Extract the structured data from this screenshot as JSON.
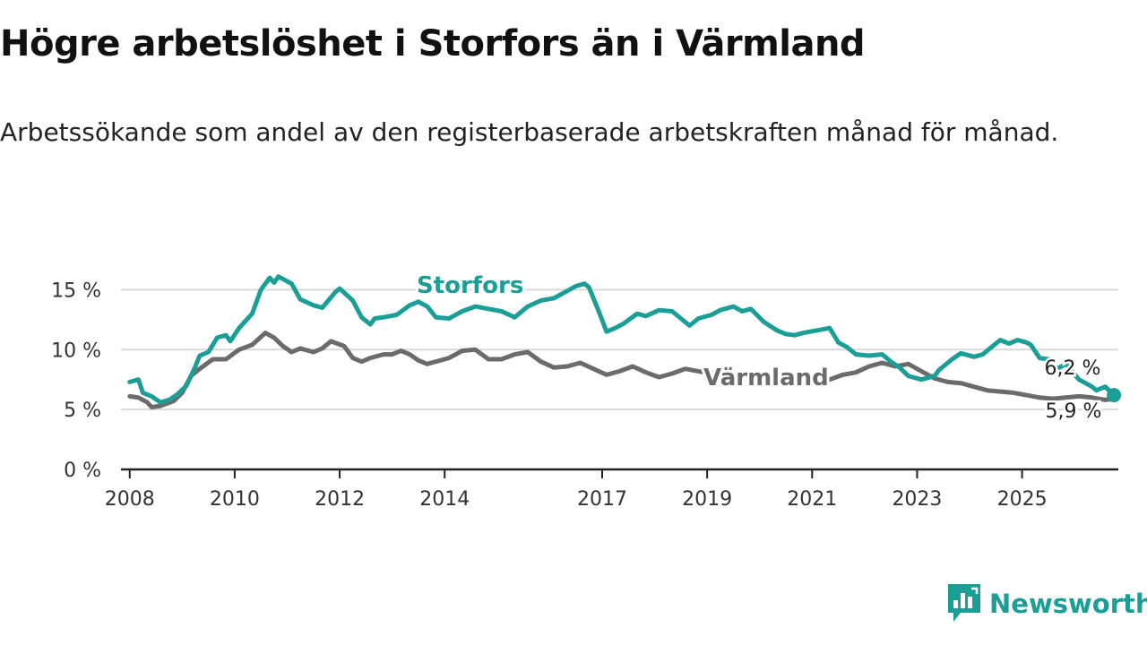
{
  "title": "Högre arbetslöshet i Storfors än i Värmland",
  "subtitle": "Arbetssökande som andel av den registerbaserade arbetskraften månad för månad.",
  "brand": {
    "name": "Newsworthy",
    "icon": "newsworthy-logo-icon",
    "color": "#1a9e96"
  },
  "chart_data": {
    "type": "line",
    "title": "Högre arbetslöshet i Storfors än i Värmland",
    "subtitle": "Arbetssökande som andel av den registerbaserade arbetskraften månad för månad.",
    "xlabel": "",
    "ylabel": "",
    "x_ticks": [
      "2008",
      "2010",
      "2012",
      "2014",
      "2017",
      "2019",
      "2021",
      "2023",
      "2025"
    ],
    "y_ticks": [
      "0 %",
      "5 %",
      "10 %",
      "15 %"
    ],
    "ylim": [
      0,
      17.5
    ],
    "xlim": [
      "2007-11",
      "2026-11"
    ],
    "grid": true,
    "legend": "inline labels",
    "series": [
      {
        "name": "Storfors",
        "color": "#1a9e96",
        "end_label": "6,2 %",
        "points": [
          [
            "2008-01",
            7.3
          ],
          [
            "2008-03",
            7.5
          ],
          [
            "2008-04",
            6.4
          ],
          [
            "2008-06",
            6.1
          ],
          [
            "2008-08",
            5.6
          ],
          [
            "2008-10",
            5.8
          ],
          [
            "2008-12",
            6.3
          ],
          [
            "2009-02",
            7.0
          ],
          [
            "2009-04",
            8.6
          ],
          [
            "2009-05",
            9.5
          ],
          [
            "2009-07",
            9.8
          ],
          [
            "2009-09",
            11.0
          ],
          [
            "2009-11",
            11.2
          ],
          [
            "2009-12",
            10.7
          ],
          [
            "2010-02",
            11.8
          ],
          [
            "2010-05",
            13.0
          ],
          [
            "2010-07",
            15.0
          ],
          [
            "2010-09",
            16.0
          ],
          [
            "2010-10",
            15.6
          ],
          [
            "2010-11",
            16.1
          ],
          [
            "2011-02",
            15.5
          ],
          [
            "2011-04",
            14.2
          ],
          [
            "2011-07",
            13.7
          ],
          [
            "2011-09",
            13.5
          ],
          [
            "2011-12",
            14.8
          ],
          [
            "2012-01",
            15.1
          ],
          [
            "2012-04",
            14.1
          ],
          [
            "2012-06",
            12.7
          ],
          [
            "2012-08",
            12.1
          ],
          [
            "2012-09",
            12.6
          ],
          [
            "2012-11",
            12.7
          ],
          [
            "2013-02",
            12.9
          ],
          [
            "2013-05",
            13.7
          ],
          [
            "2013-07",
            14.0
          ],
          [
            "2013-09",
            13.6
          ],
          [
            "2013-11",
            12.7
          ],
          [
            "2014-02",
            12.6
          ],
          [
            "2014-05",
            13.2
          ],
          [
            "2014-08",
            13.6
          ],
          [
            "2014-11",
            13.4
          ],
          [
            "2015-02",
            13.2
          ],
          [
            "2015-05",
            12.7
          ],
          [
            "2015-08",
            13.6
          ],
          [
            "2015-11",
            14.1
          ],
          [
            "2016-02",
            14.3
          ],
          [
            "2016-05",
            14.9
          ],
          [
            "2016-07",
            15.3
          ],
          [
            "2016-09",
            15.5
          ],
          [
            "2016-10",
            15.2
          ],
          [
            "2016-12",
            13.4
          ],
          [
            "2017-02",
            11.5
          ],
          [
            "2017-04",
            11.8
          ],
          [
            "2017-06",
            12.2
          ],
          [
            "2017-09",
            13.0
          ],
          [
            "2017-11",
            12.8
          ],
          [
            "2018-02",
            13.3
          ],
          [
            "2018-05",
            13.2
          ],
          [
            "2018-07",
            12.6
          ],
          [
            "2018-09",
            12.0
          ],
          [
            "2018-11",
            12.6
          ],
          [
            "2019-02",
            12.9
          ],
          [
            "2019-04",
            13.3
          ],
          [
            "2019-07",
            13.6
          ],
          [
            "2019-09",
            13.2
          ],
          [
            "2019-11",
            13.4
          ],
          [
            "2020-02",
            12.3
          ],
          [
            "2020-05",
            11.6
          ],
          [
            "2020-07",
            11.3
          ],
          [
            "2020-09",
            11.2
          ],
          [
            "2020-11",
            11.4
          ],
          [
            "2021-02",
            11.6
          ],
          [
            "2021-05",
            11.8
          ],
          [
            "2021-07",
            10.6
          ],
          [
            "2021-09",
            10.2
          ],
          [
            "2021-11",
            9.6
          ],
          [
            "2022-02",
            9.5
          ],
          [
            "2022-05",
            9.6
          ],
          [
            "2022-07",
            9.0
          ],
          [
            "2022-09",
            8.5
          ],
          [
            "2022-11",
            7.8
          ],
          [
            "2023-02",
            7.5
          ],
          [
            "2023-05",
            7.8
          ],
          [
            "2023-06",
            8.3
          ],
          [
            "2023-08",
            8.9
          ],
          [
            "2023-09",
            9.2
          ],
          [
            "2023-11",
            9.7
          ],
          [
            "2024-02",
            9.4
          ],
          [
            "2024-04",
            9.6
          ],
          [
            "2024-06",
            10.2
          ],
          [
            "2024-08",
            10.8
          ],
          [
            "2024-10",
            10.5
          ],
          [
            "2024-12",
            10.8
          ],
          [
            "2025-02",
            10.6
          ],
          [
            "2025-03",
            10.4
          ],
          [
            "2025-05",
            9.3
          ],
          [
            "2025-07",
            9.2
          ],
          [
            "2025-09",
            8.4
          ],
          [
            "2025-11",
            8.8
          ],
          [
            "2026-02",
            7.5
          ],
          [
            "2026-05",
            6.9
          ],
          [
            "2026-06",
            6.6
          ],
          [
            "2026-08",
            6.9
          ],
          [
            "2026-10",
            6.2
          ]
        ]
      },
      {
        "name": "Värmland",
        "color": "#6b6b6e",
        "end_label": "5,9 %",
        "points": [
          [
            "2008-01",
            6.1
          ],
          [
            "2008-03",
            6.0
          ],
          [
            "2008-05",
            5.6
          ],
          [
            "2008-06",
            5.2
          ],
          [
            "2008-08",
            5.3
          ],
          [
            "2008-11",
            5.7
          ],
          [
            "2009-01",
            6.4
          ],
          [
            "2009-03",
            7.8
          ],
          [
            "2009-05",
            8.4
          ],
          [
            "2009-08",
            9.2
          ],
          [
            "2009-11",
            9.2
          ],
          [
            "2010-02",
            10.0
          ],
          [
            "2010-05",
            10.4
          ],
          [
            "2010-08",
            11.4
          ],
          [
            "2010-10",
            11.0
          ],
          [
            "2010-12",
            10.3
          ],
          [
            "2011-02",
            9.8
          ],
          [
            "2011-04",
            10.1
          ],
          [
            "2011-07",
            9.8
          ],
          [
            "2011-09",
            10.1
          ],
          [
            "2011-11",
            10.7
          ],
          [
            "2012-02",
            10.3
          ],
          [
            "2012-04",
            9.3
          ],
          [
            "2012-06",
            9.0
          ],
          [
            "2012-08",
            9.3
          ],
          [
            "2012-11",
            9.6
          ],
          [
            "2013-01",
            9.6
          ],
          [
            "2013-03",
            9.9
          ],
          [
            "2013-05",
            9.6
          ],
          [
            "2013-07",
            9.1
          ],
          [
            "2013-09",
            8.8
          ],
          [
            "2014-02",
            9.3
          ],
          [
            "2014-05",
            9.9
          ],
          [
            "2014-08",
            10.0
          ],
          [
            "2014-11",
            9.2
          ],
          [
            "2015-02",
            9.2
          ],
          [
            "2015-05",
            9.6
          ],
          [
            "2015-08",
            9.8
          ],
          [
            "2015-11",
            9.0
          ],
          [
            "2016-02",
            8.5
          ],
          [
            "2016-05",
            8.6
          ],
          [
            "2016-08",
            8.9
          ],
          [
            "2016-11",
            8.4
          ],
          [
            "2017-02",
            7.9
          ],
          [
            "2017-05",
            8.2
          ],
          [
            "2017-08",
            8.6
          ],
          [
            "2017-11",
            8.1
          ],
          [
            "2018-02",
            7.7
          ],
          [
            "2018-05",
            8.0
          ],
          [
            "2018-08",
            8.4
          ],
          [
            "2018-11",
            8.2
          ],
          [
            "2019-02",
            8.0
          ],
          [
            "2019-05",
            7.5
          ],
          [
            "2019-08",
            7.7
          ],
          [
            "2019-11",
            7.9
          ],
          [
            "2020-02",
            7.6
          ],
          [
            "2020-05",
            7.3
          ],
          [
            "2020-08",
            7.5
          ],
          [
            "2020-11",
            7.7
          ],
          [
            "2021-02",
            7.8
          ],
          [
            "2021-05",
            7.5
          ],
          [
            "2021-08",
            7.9
          ],
          [
            "2021-11",
            8.1
          ],
          [
            "2022-02",
            8.6
          ],
          [
            "2022-05",
            8.9
          ],
          [
            "2022-08",
            8.6
          ],
          [
            "2022-11",
            8.8
          ],
          [
            "2023-02",
            8.2
          ],
          [
            "2023-05",
            7.6
          ],
          [
            "2023-08",
            7.3
          ],
          [
            "2023-11",
            7.2
          ],
          [
            "2024-02",
            6.9
          ],
          [
            "2024-05",
            6.6
          ],
          [
            "2024-08",
            6.5
          ],
          [
            "2024-11",
            6.4
          ],
          [
            "2025-02",
            6.2
          ],
          [
            "2025-05",
            6.0
          ],
          [
            "2025-08",
            5.9
          ],
          [
            "2025-11",
            6.0
          ],
          [
            "2026-02",
            6.1
          ],
          [
            "2026-05",
            6.0
          ],
          [
            "2026-08",
            5.8
          ],
          [
            "2026-10",
            5.9
          ]
        ]
      }
    ]
  }
}
